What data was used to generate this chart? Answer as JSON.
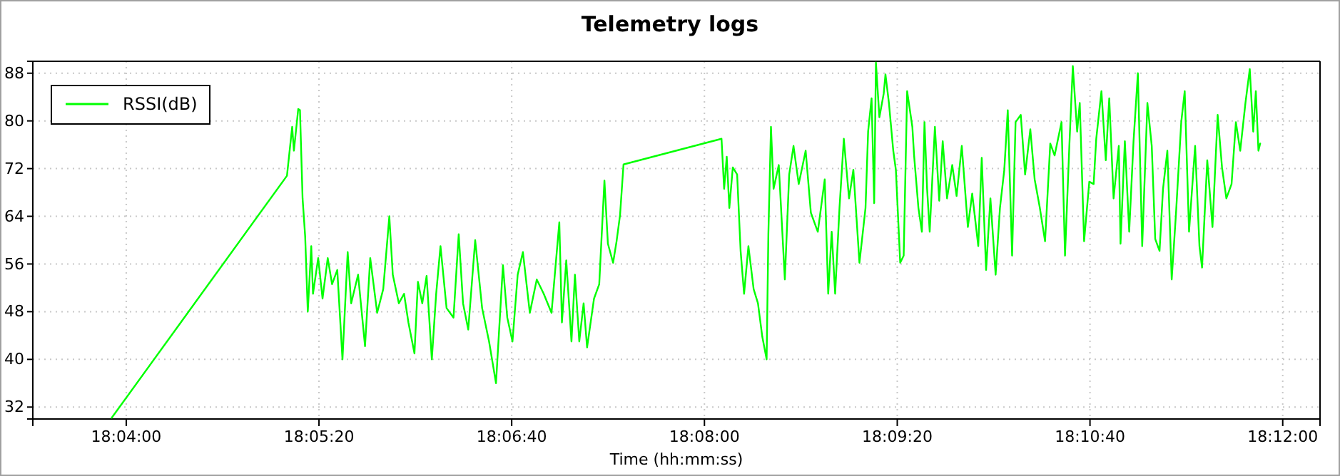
{
  "chart_data": {
    "type": "line",
    "title": "Telemetry logs",
    "xlabel": "Time (hh:mm:ss)",
    "xlim": [
      18.0559,
      18.2043
    ],
    "ylim": [
      30,
      90
    ],
    "xticks": [
      {
        "value": 18.06667,
        "label": "18:04:00"
      },
      {
        "value": 18.08889,
        "label": "18:05:20"
      },
      {
        "value": 18.11111,
        "label": "18:06:40"
      },
      {
        "value": 18.13333,
        "label": "18:08:00"
      },
      {
        "value": 18.15556,
        "label": "18:09:20"
      },
      {
        "value": 18.17778,
        "label": "18:10:40"
      },
      {
        "value": 18.2,
        "label": "18:12:00"
      }
    ],
    "yticks": [
      32,
      40,
      48,
      56,
      64,
      72,
      80,
      88
    ],
    "grid": true,
    "legend": "top left",
    "line_style": "solid",
    "marker": "none",
    "series": [
      {
        "name": "RSSI(dB)",
        "color": "#00ff00",
        "x": [
          18.065,
          18.0852,
          18.0858,
          18.086,
          18.0865,
          18.0867,
          18.087,
          18.0873,
          18.0876,
          18.088,
          18.0882,
          18.0888,
          18.0893,
          18.0899,
          18.0904,
          18.091,
          18.0916,
          18.0922,
          18.0926,
          18.0934,
          18.0942,
          18.0948,
          18.0956,
          18.0963,
          18.097,
          18.0974,
          18.0981,
          18.0987,
          18.0992,
          18.0999,
          18.1003,
          18.1008,
          18.1013,
          18.1019,
          18.1024,
          18.1029,
          18.1036,
          18.1044,
          18.105,
          18.1055,
          18.1061,
          18.1069,
          18.1077,
          18.1085,
          18.1093,
          18.1101,
          18.1106,
          18.1112,
          18.1118,
          18.1124,
          18.1132,
          18.114,
          18.1148,
          18.1157,
          18.1166,
          18.1169,
          18.1174,
          18.118,
          18.1184,
          18.1189,
          18.1194,
          18.1198,
          18.1206,
          18.1212,
          18.1218,
          18.1222,
          18.1228,
          18.1232,
          18.1236,
          18.124,
          18.1353,
          18.1356,
          18.1359,
          18.1362,
          18.1366,
          18.1371,
          18.1375,
          18.1379,
          18.1384,
          18.139,
          18.1395,
          18.14,
          18.1405,
          18.1407,
          18.141,
          18.1413,
          18.1419,
          18.1426,
          18.1431,
          18.1436,
          18.1442,
          18.145,
          18.1456,
          18.1464,
          18.1472,
          18.1476,
          18.148,
          18.1484,
          18.1489,
          18.1494,
          18.15,
          18.1505,
          18.1512,
          18.1519,
          18.1522,
          18.1526,
          18.1529,
          18.1531,
          18.1535,
          18.154,
          18.1542,
          18.1546,
          18.1551,
          18.1554,
          18.1559,
          18.1563,
          18.1567,
          18.1573,
          18.1575,
          18.158,
          18.1584,
          18.1587,
          18.159,
          18.1593,
          18.1599,
          18.1604,
          18.1608,
          18.1613,
          18.1619,
          18.1624,
          18.163,
          18.1637,
          18.1642,
          18.1649,
          18.1653,
          18.1658,
          18.1663,
          18.1669,
          18.1674,
          18.1679,
          18.1683,
          18.1688,
          18.1692,
          18.1698,
          18.1703,
          18.1709,
          18.1714,
          18.172,
          18.1726,
          18.1732,
          18.1737,
          18.1745,
          18.1749,
          18.1754,
          18.1758,
          18.1763,
          18.1766,
          18.1771,
          18.1777,
          18.1782,
          18.1785,
          18.1791,
          18.1796,
          18.18,
          18.1805,
          18.1811,
          18.1813,
          18.1818,
          18.1823,
          18.1828,
          18.1833,
          18.1838,
          18.1844,
          18.1849,
          18.1853,
          18.1858,
          18.1862,
          18.1867,
          18.1872,
          18.1877,
          18.1883,
          18.1887,
          18.1892,
          18.1899,
          18.1904,
          18.1907,
          18.1913,
          18.1919,
          18.1925,
          18.193,
          18.1935,
          18.1941,
          18.1946,
          18.1951,
          18.1957,
          18.1962,
          18.1966,
          18.1969,
          18.1972,
          18.1974
        ],
        "values": [
          30.2,
          70.8,
          79.0,
          75.0,
          82.0,
          81.8,
          67.0,
          60.6,
          48.0,
          59.0,
          51.0,
          57.0,
          50.2,
          57.0,
          52.6,
          55.0,
          40.0,
          58.0,
          49.4,
          54.2,
          42.2,
          57.0,
          47.8,
          51.8,
          64.0,
          54.2,
          49.4,
          51.0,
          46.2,
          41.0,
          53.0,
          49.4,
          54.0,
          40.0,
          51.0,
          59.0,
          48.6,
          47.0,
          61.0,
          49.4,
          45.0,
          60.0,
          48.6,
          43.0,
          36.0,
          55.8,
          47.0,
          43.0,
          54.2,
          58.0,
          47.8,
          53.4,
          51.0,
          47.8,
          63.0,
          46.2,
          56.6,
          43.0,
          54.2,
          43.0,
          49.4,
          42.0,
          50.2,
          52.6,
          70.0,
          59.4,
          56.2,
          59.8,
          64.2,
          72.7,
          77.0,
          68.6,
          74.0,
          65.4,
          72.2,
          71.0,
          58.2,
          51.0,
          59.0,
          51.8,
          49.4,
          43.8,
          40.0,
          61.0,
          79.0,
          68.6,
          72.6,
          53.4,
          71.0,
          75.8,
          69.4,
          75.0,
          64.6,
          61.4,
          70.2,
          51.0,
          61.4,
          51.0,
          65.4,
          77.0,
          67.0,
          71.8,
          56.2,
          65.4,
          78.2,
          83.8,
          66.2,
          89.8,
          80.6,
          84.6,
          87.8,
          83.0,
          75.0,
          71.8,
          56.2,
          57.4,
          85.0,
          79.0,
          74.2,
          65.4,
          61.4,
          79.8,
          68.6,
          61.4,
          79.0,
          66.6,
          76.6,
          67.0,
          72.6,
          67.4,
          75.8,
          62.2,
          67.8,
          59.0,
          73.8,
          55.0,
          67.0,
          54.2,
          65.4,
          71.8,
          81.8,
          57.4,
          79.8,
          81.0,
          71.0,
          78.6,
          70.2,
          65.4,
          59.8,
          76.2,
          74.2,
          79.8,
          57.4,
          75.8,
          89.2,
          78.2,
          83.0,
          59.8,
          69.8,
          69.4,
          77.0,
          85.0,
          73.4,
          83.8,
          67.0,
          75.8,
          59.4,
          76.6,
          61.4,
          76.6,
          88.0,
          59.0,
          83.0,
          75.8,
          60.2,
          58.2,
          68.6,
          75.0,
          53.4,
          64.6,
          79.8,
          85.0,
          61.4,
          75.8,
          59.0,
          55.4,
          73.4,
          62.2,
          81.0,
          72.2,
          67.0,
          69.4,
          79.8,
          75.0,
          83.0,
          88.7,
          78.2,
          85.0,
          75.0,
          76.2
        ]
      }
    ]
  }
}
